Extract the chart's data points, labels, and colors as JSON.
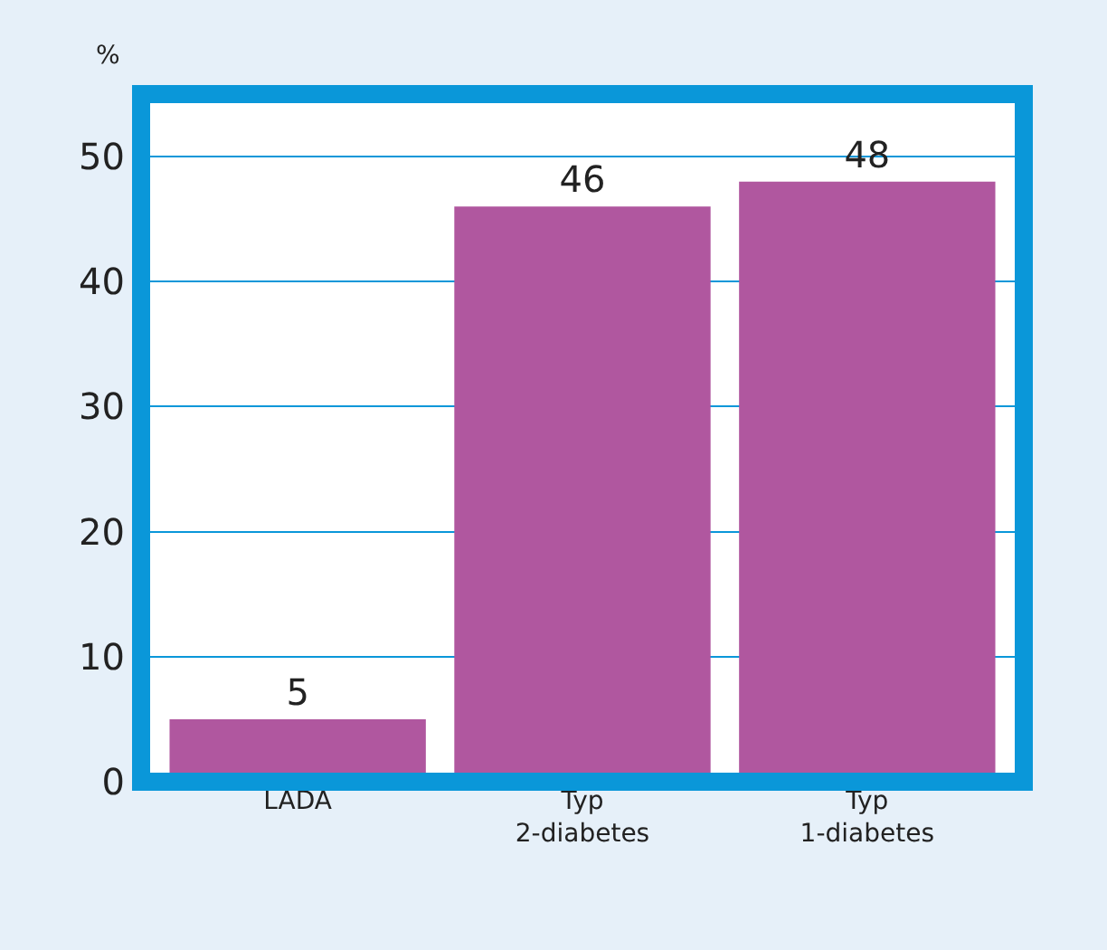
{
  "chart_data": {
    "type": "bar",
    "ylabel": "%",
    "categories": [
      "LADA",
      "Typ\n2-diabetes",
      "Typ\n1-diabetes"
    ],
    "values": [
      5,
      46,
      48
    ],
    "color": "#b0579f",
    "ylim": [
      0,
      55
    ],
    "yticks": [
      0,
      10,
      20,
      30,
      40,
      50
    ],
    "grid": "y",
    "data_labels": true
  }
}
